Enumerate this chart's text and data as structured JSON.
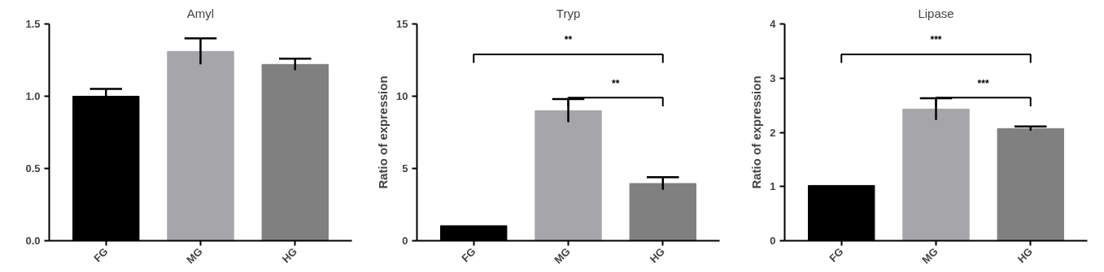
{
  "chart_data": [
    {
      "type": "bar",
      "title": "Amyl",
      "categories": [
        "FG",
        "MG",
        "HG"
      ],
      "values": [
        1.0,
        1.31,
        1.22
      ],
      "errors": [
        0.05,
        0.09,
        0.04
      ],
      "colors": [
        "#000000",
        "#a6a6aa",
        "#808080"
      ],
      "ylim": [
        0,
        1.5
      ],
      "yticks": [
        {
          "value": 0,
          "label": "0.0"
        },
        0.5,
        {
          "value": 1,
          "label": "1.0"
        },
        1.5
      ],
      "grid": false
    },
    {
      "type": "bar",
      "title": "Tryp",
      "ylabel": "Ratio of expression",
      "categories": [
        "FG",
        "MG",
        "HG"
      ],
      "values": [
        1.04,
        9.0,
        3.96
      ],
      "errors": [
        null,
        0.8,
        0.44
      ],
      "colors": [
        "#000000",
        "#a6a6aa",
        "#808080"
      ],
      "ylim": [
        0,
        15
      ],
      "yticks": [
        0,
        5,
        10,
        15
      ],
      "grid": false,
      "annotations": [
        "**",
        "**"
      ]
    },
    {
      "type": "bar",
      "title": "Lipase",
      "ylabel": "Ratio of expression",
      "categories": [
        "FG",
        "MG",
        "HG"
      ],
      "values": [
        1.02,
        2.43,
        2.07
      ],
      "errors": [
        null,
        0.2,
        0.04
      ],
      "colors": [
        "#000000",
        "#a6a6aa",
        "#808080"
      ],
      "ylim": [
        0,
        4
      ],
      "yticks": [
        0,
        1,
        2,
        3,
        4
      ],
      "grid": false,
      "annotations": [
        "***",
        "***"
      ]
    }
  ]
}
